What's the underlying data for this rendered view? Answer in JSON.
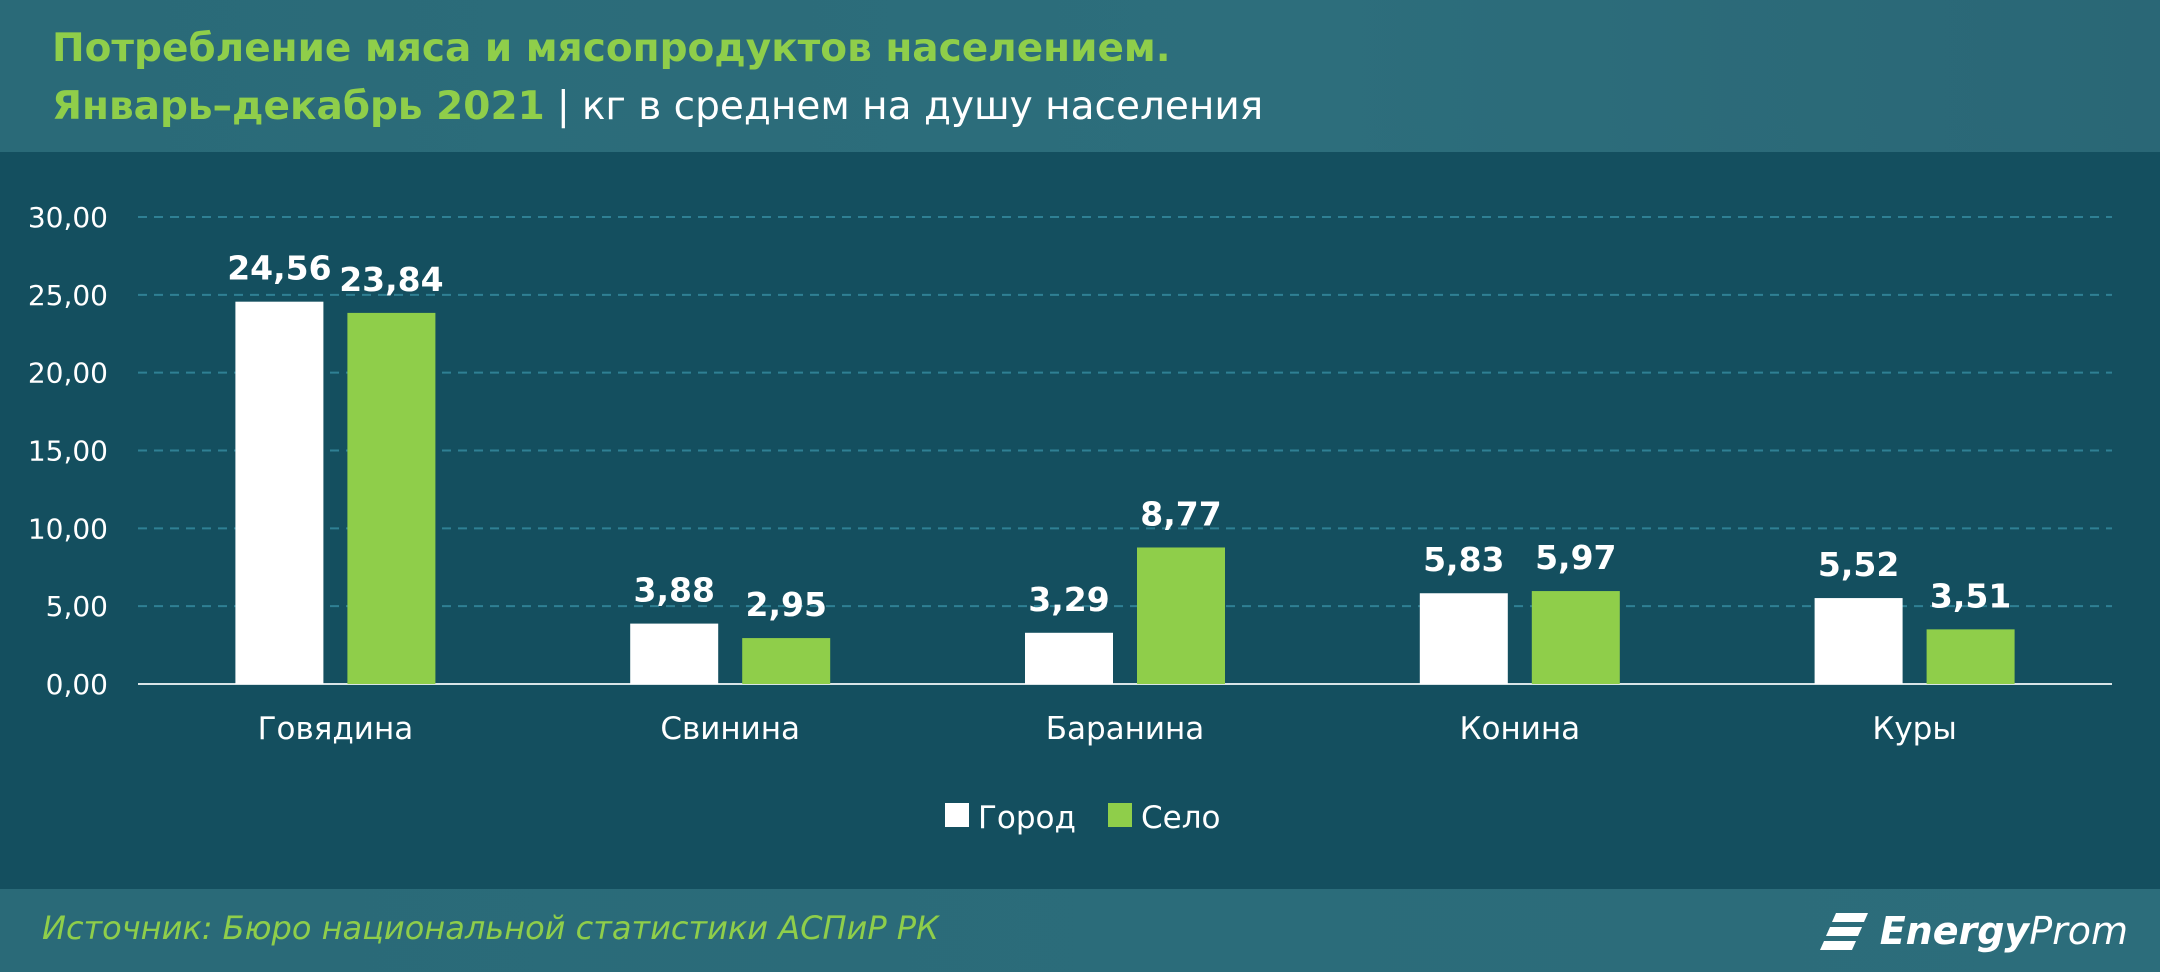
{
  "header": {
    "title": "Потребление мяса и мясопродуктов населением.",
    "period": "Январь–декабрь 2021",
    "separator": "|",
    "unit": "кг в среднем на душу населения"
  },
  "footer": {
    "source": "Источник: Бюро национальной статистики АСПиР РК",
    "logo_bold": "Energy",
    "logo_light": "Prom"
  },
  "colors": {
    "background": "#144f5f",
    "header": "#2b6b79",
    "accent_green": "#8fce4a",
    "series_city": "#ffffff",
    "series_village": "#8fce4a",
    "grid": "#2f8094"
  },
  "chart_data": {
    "type": "bar",
    "categories": [
      "Говядина",
      "Свинина",
      "Баранина",
      "Конина",
      "Куры"
    ],
    "series": [
      {
        "name": "Город",
        "values": [
          24.56,
          3.88,
          3.29,
          5.83,
          5.52
        ],
        "labels": [
          "24,56",
          "3,88",
          "3,29",
          "5,83",
          "5,52"
        ]
      },
      {
        "name": "Село",
        "values": [
          23.84,
          2.95,
          8.77,
          5.97,
          3.51
        ],
        "labels": [
          "23,84",
          "2,95",
          "8,77",
          "5,97",
          "3,51"
        ]
      }
    ],
    "ylim": [
      0,
      30
    ],
    "yticks": [
      0,
      5,
      10,
      15,
      20,
      25,
      30
    ],
    "ytick_labels": [
      "0,00",
      "5,00",
      "10,00",
      "15,00",
      "20,00",
      "25,00",
      "30,00"
    ],
    "grid": true,
    "legend_position": "bottom-center"
  }
}
